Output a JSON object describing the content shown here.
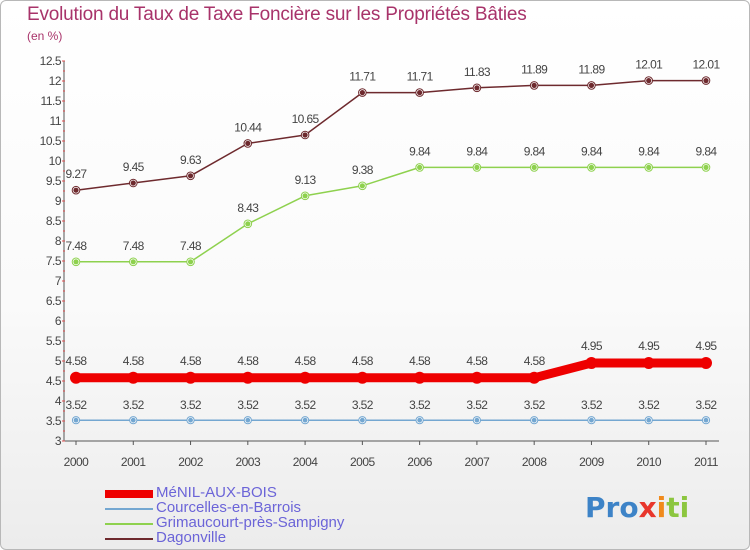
{
  "header": {
    "title": "Evolution du Taux de Taxe Foncière sur les Propriétés Bâties",
    "subtitle": "(en %)"
  },
  "logo": {
    "p1": "Pro",
    "p2": "x",
    "p3": "i",
    "p4": "ti"
  },
  "chart_data": {
    "type": "line",
    "title": "Evolution du Taux de Taxe Foncière sur les Propriétés Bâties",
    "ylabel": "(en %)",
    "xlabel": "",
    "ylim": [
      3,
      12.5
    ],
    "yticks": [
      "3",
      "3.5",
      "4",
      "4.5",
      "5",
      "5.5",
      "6",
      "6.5",
      "7",
      "7.5",
      "8",
      "8.5",
      "9",
      "9.5",
      "10",
      "10.5",
      "11",
      "11.5",
      "12",
      "12.5"
    ],
    "x": [
      "2000",
      "2001",
      "2002",
      "2003",
      "2004",
      "2005",
      "2006",
      "2007",
      "2008",
      "2009",
      "2010",
      "2011"
    ],
    "grid": false,
    "legend_position": "bottom-left",
    "series": [
      {
        "name": "Dagonville",
        "color": "#6e2a2e",
        "values": [
          9.27,
          9.45,
          9.63,
          10.44,
          10.65,
          11.71,
          11.71,
          11.83,
          11.89,
          11.89,
          12.01,
          12.01
        ],
        "labels": [
          "9.27",
          "9.45",
          "9.63",
          "10.44",
          "10.65",
          "11.71",
          "11.71",
          "11.83",
          "11.89",
          "11.89",
          "12.01",
          "12.01"
        ]
      },
      {
        "name": "Grimaucourt-près-Sampigny",
        "color": "#8ed14e",
        "values": [
          7.48,
          7.48,
          7.48,
          8.43,
          9.13,
          9.38,
          9.84,
          9.84,
          9.84,
          9.84,
          9.84,
          9.84
        ],
        "labels": [
          "7.48",
          "7.48",
          "7.48",
          "8.43",
          "9.13",
          "9.38",
          "9.84",
          "9.84",
          "9.84",
          "9.84",
          "9.84",
          "9.84"
        ]
      },
      {
        "name": "MéNIL-AUX-BOIS",
        "color": "#ee0000",
        "values": [
          4.58,
          4.58,
          4.58,
          4.58,
          4.58,
          4.58,
          4.58,
          4.58,
          4.58,
          4.95,
          4.95,
          4.95
        ],
        "labels": [
          "4.58",
          "4.58",
          "4.58",
          "4.58",
          "4.58",
          "4.58",
          "4.58",
          "4.58",
          "4.58",
          "4.95",
          "4.95",
          "4.95"
        ]
      },
      {
        "name": "Courcelles-en-Barrois",
        "color": "#74a7d1",
        "values": [
          3.52,
          3.52,
          3.52,
          3.52,
          3.52,
          3.52,
          3.52,
          3.52,
          3.52,
          3.52,
          3.52,
          3.52
        ],
        "labels": [
          "3.52",
          "3.52",
          "3.52",
          "3.52",
          "3.52",
          "3.52",
          "3.52",
          "3.52",
          "3.52",
          "3.52",
          "3.52",
          "3.52"
        ]
      }
    ],
    "legend": [
      "MéNIL-AUX-BOIS",
      "Courcelles-en-Barrois",
      "Grimaucourt-près-Sampigny",
      "Dagonville"
    ]
  }
}
